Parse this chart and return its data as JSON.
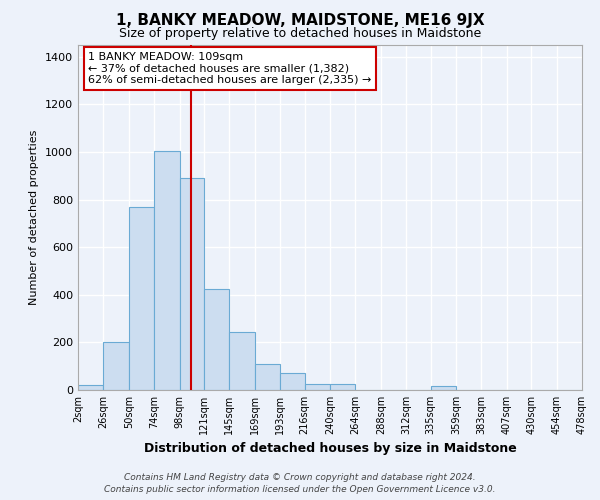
{
  "title": "1, BANKY MEADOW, MAIDSTONE, ME16 9JX",
  "subtitle": "Size of property relative to detached houses in Maidstone",
  "xlabel": "Distribution of detached houses by size in Maidstone",
  "ylabel": "Number of detached properties",
  "bar_color": "#ccddf0",
  "bar_edge_color": "#6aaad4",
  "background_color": "#edf2fa",
  "grid_color": "#ffffff",
  "bin_edges": [
    2,
    26,
    50,
    74,
    98,
    121,
    145,
    169,
    193,
    216,
    240,
    264,
    288,
    312,
    335,
    359,
    383,
    407,
    430,
    454,
    478
  ],
  "bin_labels": [
    "2sqm",
    "26sqm",
    "50sqm",
    "74sqm",
    "98sqm",
    "121sqm",
    "145sqm",
    "169sqm",
    "193sqm",
    "216sqm",
    "240sqm",
    "264sqm",
    "288sqm",
    "312sqm",
    "335sqm",
    "359sqm",
    "383sqm",
    "407sqm",
    "430sqm",
    "454sqm",
    "478sqm"
  ],
  "counts": [
    20,
    200,
    770,
    1005,
    890,
    425,
    245,
    110,
    70,
    25,
    25,
    0,
    0,
    0,
    15,
    0,
    0,
    0,
    0,
    0
  ],
  "ylim": [
    0,
    1450
  ],
  "yticks": [
    0,
    200,
    400,
    600,
    800,
    1000,
    1200,
    1400
  ],
  "vline_x": 109,
  "vline_color": "#cc0000",
  "annotation_title": "1 BANKY MEADOW: 109sqm",
  "annotation_line1": "← 37% of detached houses are smaller (1,382)",
  "annotation_line2": "62% of semi-detached houses are larger (2,335) →",
  "footer1": "Contains HM Land Registry data © Crown copyright and database right 2024.",
  "footer2": "Contains public sector information licensed under the Open Government Licence v3.0."
}
